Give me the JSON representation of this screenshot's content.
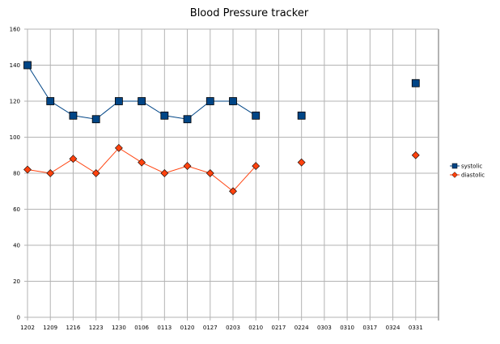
{
  "chart_data": {
    "type": "line",
    "title": "Blood Pressure tracker",
    "xlabel": "",
    "ylabel": "",
    "ylim": [
      0,
      160
    ],
    "yticks": [
      0,
      20,
      40,
      60,
      80,
      100,
      120,
      140,
      160
    ],
    "grid": true,
    "legend_position": "right",
    "categories": [
      "1202",
      "1209",
      "1216",
      "1223",
      "1230",
      "0106",
      "0113",
      "0120",
      "0127",
      "0203",
      "0210",
      "0217",
      "0224",
      "0303",
      "0310",
      "0317",
      "0324",
      "0331"
    ],
    "series": [
      {
        "name": "systolic",
        "color": "#004586",
        "marker": "square",
        "values": [
          140,
          120,
          112,
          110,
          120,
          120,
          112,
          110,
          120,
          120,
          112,
          null,
          112,
          null,
          null,
          null,
          null,
          130
        ]
      },
      {
        "name": "diastolic",
        "color": "#ff420e",
        "marker": "diamond",
        "values": [
          82,
          80,
          88,
          80,
          94,
          86,
          80,
          84,
          80,
          70,
          84,
          null,
          86,
          null,
          null,
          null,
          null,
          90
        ]
      }
    ]
  }
}
